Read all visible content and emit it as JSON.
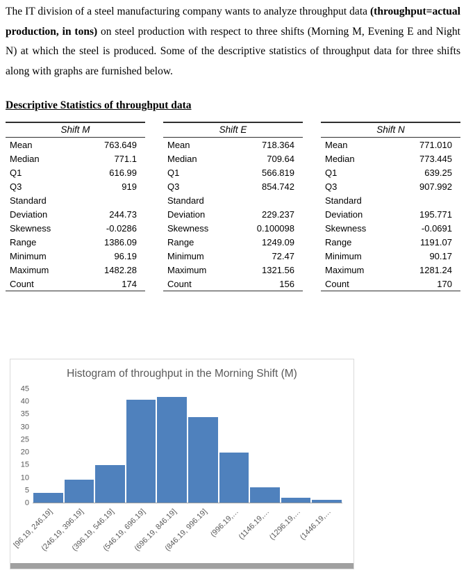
{
  "paragraph": {
    "part1": "The IT division of a steel manufacturing company wants to analyze throughput data ",
    "part2": "(throughput=actual production, in tons)",
    "part3": " on steel production with respect to three shifts (Morning M, Evening E and Night N) at which the steel is produced. Some of the descriptive statistics of throughput data for three shifts along with graphs are furnished below."
  },
  "heading": "Descriptive Statistics of throughput data",
  "tables": [
    {
      "title": "Shift M",
      "rows": [
        [
          "Mean",
          "763.649"
        ],
        [
          "Median",
          "771.1"
        ],
        [
          "Q1",
          "616.99"
        ],
        [
          "Q3",
          "919"
        ],
        [
          "Standard",
          ""
        ],
        [
          "Deviation",
          "244.73"
        ],
        [
          "Skewness",
          "-0.0286"
        ],
        [
          "Range",
          "1386.09"
        ],
        [
          "Minimum",
          "96.19"
        ],
        [
          "Maximum",
          "1482.28"
        ],
        [
          "Count",
          "174"
        ]
      ]
    },
    {
      "title": "Shift E",
      "rows": [
        [
          "Mean",
          "718.364"
        ],
        [
          "Median",
          "709.64"
        ],
        [
          "Q1",
          "566.819"
        ],
        [
          "Q3",
          "854.742"
        ],
        [
          "Standard",
          ""
        ],
        [
          "Deviation",
          "229.237"
        ],
        [
          "Skewness",
          "0.100098"
        ],
        [
          "Range",
          "1249.09"
        ],
        [
          "Minimum",
          "72.47"
        ],
        [
          "Maximum",
          "1321.56"
        ],
        [
          "Count",
          "156"
        ]
      ]
    },
    {
      "title": "Shift N",
      "rows": [
        [
          "Mean",
          "771.010"
        ],
        [
          "Median",
          "773.445"
        ],
        [
          "Q1",
          "639.25"
        ],
        [
          "Q3",
          "907.992"
        ],
        [
          "Standard",
          ""
        ],
        [
          "Deviation",
          "195.771"
        ],
        [
          "Skewness",
          "-0.0691"
        ],
        [
          "Range",
          "1191.07"
        ],
        [
          "Minimum",
          "90.17"
        ],
        [
          "Maximum",
          "1281.24"
        ],
        [
          "Count",
          "170"
        ]
      ]
    }
  ],
  "chart_data": {
    "type": "bar",
    "title": "Histogram of throughput in the Morning Shift (M)",
    "categories": [
      "[96.19, 246.19]",
      "(246.19, 396.19]",
      "(396.19, 546.19]",
      "(546.19, 696.19]",
      "(696.19, 846.19]",
      "(846.19, 996.19]",
      "(996.19,…",
      "(1146.19,…",
      "(1296.19,…",
      "(1446.19,…"
    ],
    "values": [
      4,
      9,
      15,
      41,
      42,
      34,
      20,
      6,
      2,
      1
    ],
    "xlabel": "",
    "ylabel": "",
    "ylim": [
      0,
      45
    ],
    "ytick_step": 5,
    "bar_color": "#4f81bd",
    "grid": false,
    "legend": false
  }
}
